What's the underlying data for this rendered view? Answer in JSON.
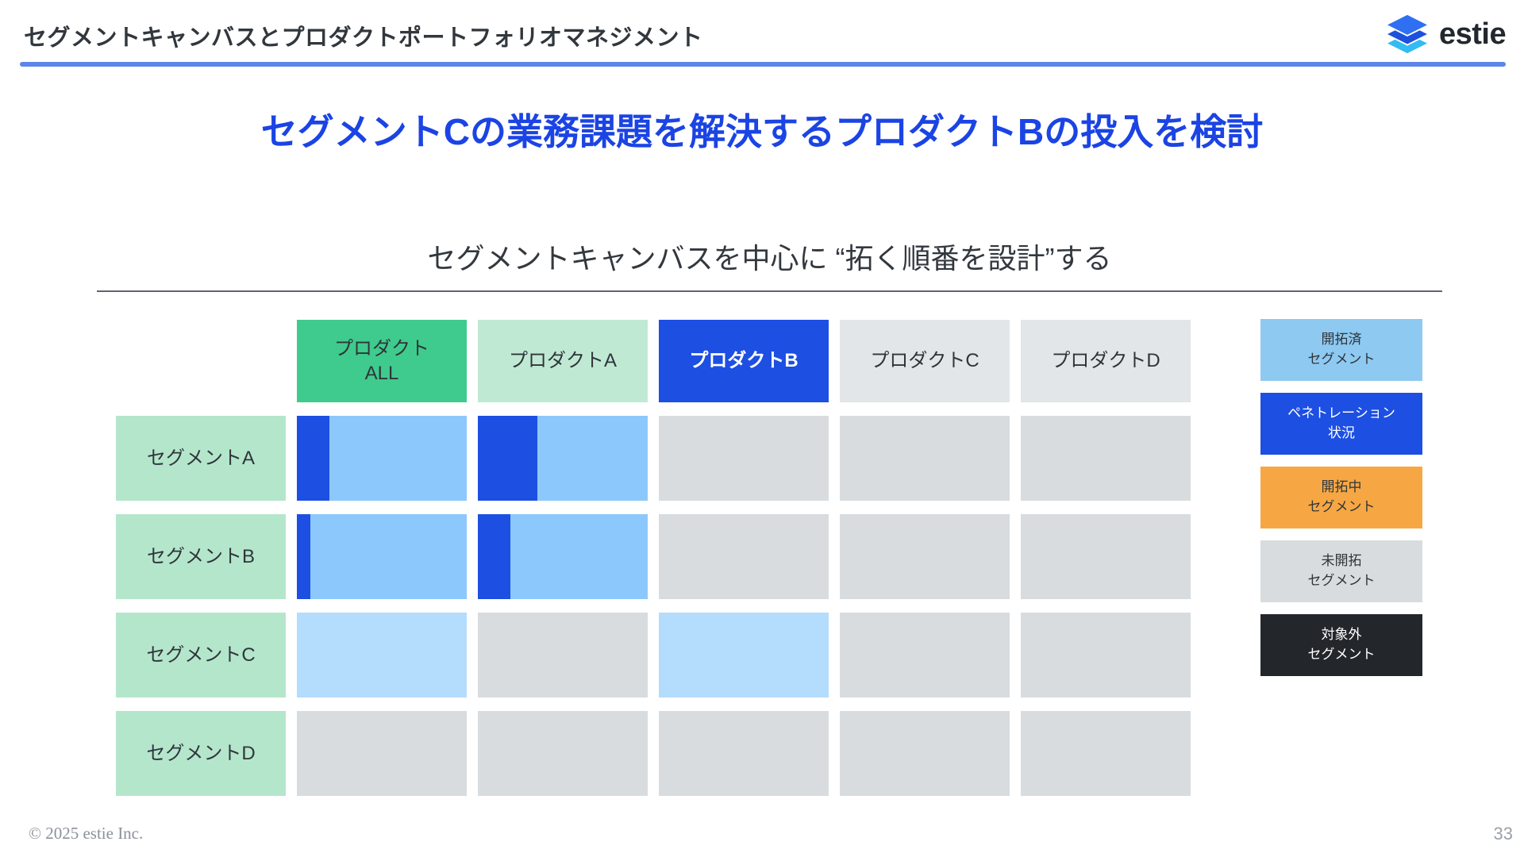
{
  "header": {
    "title": "セグメントキャンバスとプロダクトポートフォリオマネジメント",
    "logo_text": "estie"
  },
  "main": {
    "headline": "セグメントCの業務課題を解決するプロダクトBの投入を検討",
    "subtitle": "セグメントキャンバスを中心に “拓く順番を設計”する"
  },
  "colors": {
    "accent_line": "#5B86E8",
    "headline_blue": "#1B44E4",
    "text_dark": "#2F353B",
    "header_all": "#3FCB8D",
    "header_light_green": "#C0E9D4",
    "header_blue": "#1D4FE3",
    "header_gray": "#E2E6E9",
    "row_label_green": "#B4E6CC",
    "developed": "#8CC8FB",
    "developed_light": "#B3DCFD",
    "undeveloped": "#D8DCDE",
    "penetration": "#1D4FE3",
    "legend_developed": "#8EC9F1",
    "legend_penetration": "#1D4FE3",
    "legend_developing": "#F6A743",
    "legend_undeveloped": "#D8DCDE",
    "legend_excluded": "#23272B",
    "logo_layer_top": "#2F6FF2",
    "logo_layer_mid": "#1D50DC",
    "logo_layer_bottom": "#33BBF3"
  },
  "matrix": {
    "columns": [
      {
        "id": "all",
        "label": "プロダクト\nALL",
        "bg": "header_all",
        "text": "dark",
        "bold": false
      },
      {
        "id": "a",
        "label": "プロダクトA",
        "bg": "header_light_green",
        "text": "dark",
        "bold": false
      },
      {
        "id": "b",
        "label": "プロダクトB",
        "bg": "header_blue",
        "text": "white",
        "bold": true
      },
      {
        "id": "c",
        "label": "プロダクトC",
        "bg": "header_gray",
        "text": "dark",
        "bold": false
      },
      {
        "id": "d",
        "label": "プロダクトD",
        "bg": "header_gray",
        "text": "dark",
        "bold": false
      }
    ],
    "rows": [
      {
        "id": "a",
        "label": "セグメントA",
        "cells": [
          {
            "fill": "developed",
            "bar": 19
          },
          {
            "fill": "developed",
            "bar": 35
          },
          {
            "fill": "undeveloped"
          },
          {
            "fill": "undeveloped"
          },
          {
            "fill": "undeveloped"
          }
        ]
      },
      {
        "id": "b",
        "label": "セグメントB",
        "cells": [
          {
            "fill": "developed",
            "bar": 8
          },
          {
            "fill": "developed",
            "bar": 19
          },
          {
            "fill": "undeveloped"
          },
          {
            "fill": "undeveloped"
          },
          {
            "fill": "undeveloped"
          }
        ]
      },
      {
        "id": "c",
        "label": "セグメントC",
        "cells": [
          {
            "fill": "developed_light"
          },
          {
            "fill": "undeveloped"
          },
          {
            "fill": "developed_light"
          },
          {
            "fill": "undeveloped"
          },
          {
            "fill": "undeveloped"
          }
        ]
      },
      {
        "id": "d",
        "label": "セグメントD",
        "cells": [
          {
            "fill": "undeveloped"
          },
          {
            "fill": "undeveloped"
          },
          {
            "fill": "undeveloped"
          },
          {
            "fill": "undeveloped"
          },
          {
            "fill": "undeveloped"
          }
        ]
      }
    ]
  },
  "legend": [
    {
      "id": "developed",
      "label": "開拓済\nセグメント",
      "bg": "legend_developed",
      "fg": "dark"
    },
    {
      "id": "penetration",
      "label": "ペネトレーション\n状況",
      "bg": "legend_penetration",
      "fg": "white"
    },
    {
      "id": "developing",
      "label": "開拓中\nセグメント",
      "bg": "legend_developing",
      "fg": "dark"
    },
    {
      "id": "undeveloped",
      "label": "未開拓\nセグメント",
      "bg": "legend_undeveloped",
      "fg": "dark"
    },
    {
      "id": "excluded",
      "label": "対象外\nセグメント",
      "bg": "legend_excluded",
      "fg": "white"
    }
  ],
  "footer": {
    "copyright": "© 2025 estie Inc.",
    "page_number": "33"
  }
}
